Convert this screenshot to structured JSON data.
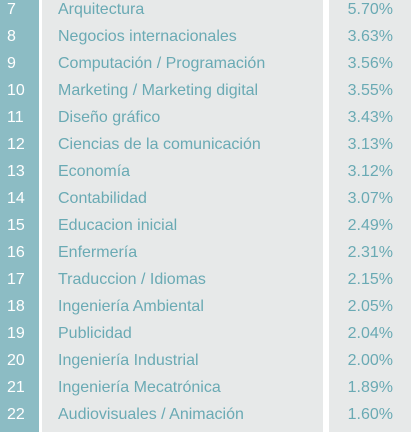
{
  "colors": {
    "rank_column_bg": "#8cbcc4",
    "cell_bg": "#e7e9e9",
    "rank_text": "#ffffff",
    "body_text": "#6aaab4"
  },
  "rows": [
    {
      "rank": "7",
      "career": "Arquitectura",
      "percent": "5.70%"
    },
    {
      "rank": "8",
      "career": "Negocios internacionales",
      "percent": "3.63%"
    },
    {
      "rank": "9",
      "career": "Computación / Programación",
      "percent": "3.56%"
    },
    {
      "rank": "10",
      "career": "Marketing / Marketing digital",
      "percent": "3.55%"
    },
    {
      "rank": "11",
      "career": "Diseño gráfico",
      "percent": "3.43%"
    },
    {
      "rank": "12",
      "career": "Ciencias de la comunicación",
      "percent": "3.13%"
    },
    {
      "rank": "13",
      "career": "Economía",
      "percent": "3.12%"
    },
    {
      "rank": "14",
      "career": "Contabilidad",
      "percent": "3.07%"
    },
    {
      "rank": "15",
      "career": "Educacion inicial",
      "percent": "2.49%"
    },
    {
      "rank": "16",
      "career": "Enfermería",
      "percent": "2.31%"
    },
    {
      "rank": "17",
      "career": "Traduccion / Idiomas",
      "percent": "2.15%"
    },
    {
      "rank": "18",
      "career": "Ingeniería Ambiental",
      "percent": "2.05%"
    },
    {
      "rank": "19",
      "career": "Publicidad",
      "percent": "2.04%"
    },
    {
      "rank": "20",
      "career": "Ingeniería Industrial",
      "percent": "2.00%"
    },
    {
      "rank": "21",
      "career": "Ingeniería Mecatrónica",
      "percent": "1.89%"
    },
    {
      "rank": "22",
      "career": "Audiovisuales / Animación",
      "percent": "1.60%"
    }
  ]
}
